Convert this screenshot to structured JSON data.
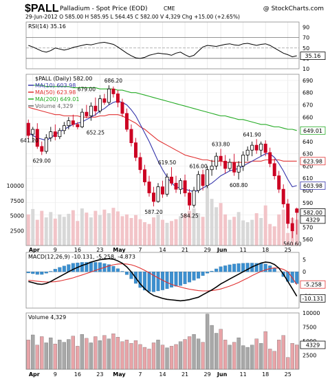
{
  "header": {
    "symbol": "$PALL",
    "name": "Palladium - Spot Price (EOD)",
    "exchange": "CME",
    "watermark": "@ StockCharts.com",
    "quote_line": "29-Jun-2012  O 585.00  H 585.95  L 564.45  C 582.00  V 4,329  Chg +15.00 (+2.65%)"
  },
  "colors": {
    "up": "#000000",
    "down": "#cc0022",
    "ma10": "#3333aa",
    "ma50": "#e03030",
    "ma200": "#22aa22",
    "vol_up": "#a8a8a8",
    "vol_down": "#e8a4a8",
    "macd_line": "#000000",
    "signal_line": "#e03030",
    "hist": "#3b8fd0",
    "rsi_line": "#000000",
    "rsi_fill": "#c8a0a0"
  },
  "x_axis": {
    "labels": [
      "Apr",
      "9",
      "16",
      "23",
      "May",
      "7",
      "14",
      "21",
      "29",
      "Jun",
      "11",
      "18",
      "25"
    ],
    "label_positions": [
      1,
      6,
      11,
      16,
      20,
      25,
      30,
      35,
      40,
      43,
      48,
      53,
      58
    ]
  },
  "chart_data": [
    {
      "type": "line",
      "panel": "rsi",
      "label": "RSI(14) 35.16",
      "ylim": [
        10,
        100
      ],
      "y_ticks": [
        10,
        30,
        50,
        70,
        90
      ],
      "ref_lines": [
        30,
        50,
        70
      ],
      "last_value": "35.16",
      "values": [
        55,
        52,
        48,
        44,
        42,
        45,
        50,
        48,
        46,
        48,
        51,
        53,
        55,
        57,
        56,
        58,
        60,
        61,
        59,
        57,
        52,
        46,
        40,
        35,
        31,
        30,
        32,
        36,
        38,
        40,
        39,
        38,
        36,
        40,
        42,
        37,
        33,
        36,
        44,
        52,
        55,
        54,
        53,
        55,
        57,
        58,
        56,
        55,
        58,
        59,
        57,
        55,
        57,
        58,
        55,
        50,
        45,
        40,
        37,
        33,
        35
      ]
    },
    {
      "type": "candlestick",
      "panel": "price",
      "title": "$PALL (Daily) 582.00",
      "ylim": [
        555,
        695
      ],
      "y_ticks": [
        560,
        570,
        580,
        590,
        600,
        610,
        620,
        630,
        640,
        650,
        660,
        670,
        680,
        690
      ],
      "ohlc": [
        [
          655,
          658,
          642,
          645
        ],
        [
          646,
          652,
          640,
          650
        ],
        [
          650,
          655,
          634,
          636
        ],
        [
          636,
          640,
          629,
          632
        ],
        [
          632,
          646,
          630,
          643
        ],
        [
          643,
          652,
          640,
          648
        ],
        [
          648,
          654,
          641,
          644
        ],
        [
          644,
          651,
          642,
          649
        ],
        [
          649,
          656,
          646,
          653
        ],
        [
          653,
          660,
          650,
          657
        ],
        [
          657,
          662,
          652,
          654
        ],
        [
          654,
          656,
          650,
          652
        ],
        [
          652,
          667,
          651,
          664
        ],
        [
          664,
          670,
          659,
          661
        ],
        [
          661,
          672,
          657,
          669
        ],
        [
          669,
          676,
          661,
          665
        ],
        [
          665,
          678,
          663,
          675
        ],
        [
          675,
          679,
          670,
          672
        ],
        [
          672,
          686,
          670,
          683
        ],
        [
          683,
          685,
          676,
          679
        ],
        [
          679,
          682,
          668,
          672
        ],
        [
          672,
          675,
          660,
          663
        ],
        [
          663,
          667,
          648,
          650
        ],
        [
          650,
          654,
          636,
          639
        ],
        [
          639,
          643,
          624,
          627
        ],
        [
          627,
          631,
          614,
          617
        ],
        [
          617,
          621,
          604,
          607
        ],
        [
          607,
          612,
          595,
          598
        ],
        [
          598,
          603,
          587,
          591
        ],
        [
          591,
          606,
          590,
          603
        ],
        [
          603,
          608,
          594,
          597
        ],
        [
          597,
          614,
          595,
          611
        ],
        [
          611,
          619,
          604,
          606
        ],
        [
          606,
          612,
          598,
          601
        ],
        [
          601,
          610,
          597,
          608
        ],
        [
          608,
          613,
          595,
          598
        ],
        [
          598,
          601,
          584,
          588
        ],
        [
          588,
          603,
          586,
          600
        ],
        [
          600,
          616,
          598,
          613
        ],
        [
          613,
          617,
          600,
          604
        ],
        [
          604,
          620,
          602,
          617
        ],
        [
          617,
          625,
          612,
          620
        ],
        [
          620,
          631,
          617,
          628
        ],
        [
          628,
          634,
          620,
          624
        ],
        [
          624,
          629,
          614,
          618
        ],
        [
          618,
          626,
          616,
          623
        ],
        [
          623,
          630,
          612,
          615
        ],
        [
          615,
          624,
          609,
          620
        ],
        [
          620,
          632,
          616,
          629
        ],
        [
          629,
          636,
          624,
          633
        ],
        [
          633,
          640,
          628,
          637
        ],
        [
          637,
          642,
          630,
          633
        ],
        [
          633,
          640,
          628,
          638
        ],
        [
          638,
          641,
          628,
          631
        ],
        [
          631,
          635,
          619,
          622
        ],
        [
          622,
          626,
          609,
          612
        ],
        [
          612,
          616,
          598,
          601
        ],
        [
          601,
          605,
          586,
          589
        ],
        [
          589,
          593,
          569,
          573
        ],
        [
          573,
          578,
          561,
          567
        ],
        [
          585,
          586,
          564,
          582
        ]
      ],
      "ma10": [
        647,
        645,
        643,
        642,
        641,
        643,
        646,
        648,
        650,
        652,
        654,
        655,
        656,
        658,
        660,
        662,
        665,
        667,
        670,
        672,
        673,
        672,
        670,
        666,
        661,
        654,
        647,
        640,
        632,
        624,
        617,
        611,
        606,
        603,
        602,
        601,
        600,
        599,
        600,
        602,
        604,
        606,
        609,
        612,
        614,
        616,
        617,
        618,
        620,
        622,
        624,
        626,
        628,
        630,
        630,
        627,
        622,
        616,
        609,
        603,
        604
      ],
      "ma50": [
        668,
        667,
        666,
        665,
        664,
        663,
        662,
        662,
        661,
        661,
        661,
        661,
        660,
        660,
        660,
        660,
        661,
        661,
        662,
        662,
        662,
        661,
        659,
        657,
        655,
        652,
        650,
        647,
        644,
        641,
        639,
        637,
        635,
        633,
        631,
        629,
        628,
        627,
        626,
        625,
        625,
        624,
        624,
        624,
        623,
        623,
        623,
        623,
        623,
        623,
        624,
        624,
        624,
        625,
        625,
        625,
        625,
        624,
        624,
        624,
        624
      ],
      "ma200": [
        686,
        686,
        686,
        686,
        685,
        685,
        685,
        685,
        685,
        685,
        684,
        684,
        684,
        684,
        684,
        684,
        683,
        683,
        683,
        683,
        682,
        682,
        681,
        680,
        680,
        679,
        678,
        677,
        676,
        675,
        674,
        673,
        672,
        671,
        670,
        669,
        668,
        667,
        666,
        665,
        664,
        663,
        662,
        661,
        661,
        660,
        659,
        658,
        658,
        657,
        656,
        655,
        654,
        654,
        653,
        652,
        652,
        651,
        650,
        650,
        649
      ],
      "annotations": [
        {
          "i": 3,
          "text": "641.20",
          "at": 641,
          "pos": "left"
        },
        {
          "i": 3,
          "text": "629.00",
          "at": 629,
          "pos": "below"
        },
        {
          "i": 13,
          "text": "679.00",
          "at": 679,
          "pos": "above"
        },
        {
          "i": 19,
          "text": "686.20",
          "at": 686,
          "pos": "above"
        },
        {
          "i": 15,
          "text": "652.25",
          "at": 652,
          "pos": "below"
        },
        {
          "i": 28,
          "text": "587.20",
          "at": 587,
          "pos": "below"
        },
        {
          "i": 31,
          "text": "619.50",
          "at": 619,
          "pos": "above"
        },
        {
          "i": 36,
          "text": "584.25",
          "at": 584,
          "pos": "below"
        },
        {
          "i": 38,
          "text": "616.00",
          "at": 616,
          "pos": "above"
        },
        {
          "i": 43,
          "text": "633.80",
          "at": 634,
          "pos": "above"
        },
        {
          "i": 47,
          "text": "608.80",
          "at": 609,
          "pos": "below"
        },
        {
          "i": 50,
          "text": "641.90",
          "at": 642,
          "pos": "above"
        },
        {
          "i": 59,
          "text": "560.60",
          "at": 561,
          "pos": "below"
        }
      ],
      "legend": [
        "$PALL (Daily) 582.00",
        "MA(10) 603.98",
        "MA(50) 623.98",
        "MA(200) 649.01",
        "Volume 4,329"
      ],
      "price_label": "582.00",
      "ma_tags": [
        "649.01",
        "623.98",
        "603.98"
      ],
      "overlay_vol_ticks": [
        2500,
        5000,
        7500,
        10000
      ]
    },
    {
      "type": "line",
      "panel": "macd",
      "label": "MACD(12,26,9) -10.131, -5.258, -4.873",
      "ylim": [
        -15,
        8
      ],
      "y_ticks": [
        -10,
        -5,
        0,
        5
      ],
      "macd_tag": "-10.131",
      "signal_tag": "-5.258",
      "macd": [
        -4,
        -4.5,
        -5,
        -5.2,
        -4.8,
        -4,
        -3,
        -2,
        -1,
        0,
        1,
        1.8,
        2.6,
        3.2,
        4,
        4.5,
        5,
        5.2,
        5.4,
        5.2,
        4.5,
        3.5,
        2,
        0,
        -2.5,
        -5,
        -7,
        -8.6,
        -9.8,
        -10.4,
        -11,
        -11.4,
        -11.6,
        -11.8,
        -12,
        -11.8,
        -11.5,
        -11,
        -10.5,
        -9.5,
        -8.5,
        -7.5,
        -6.3,
        -5,
        -4,
        -3,
        -2,
        -1,
        0,
        1,
        2,
        2.8,
        3.6,
        4,
        3.8,
        3,
        1.5,
        -1,
        -4,
        -7,
        -10.1
      ],
      "signal": [
        -3.5,
        -3.7,
        -3.9,
        -4.1,
        -4.2,
        -4.2,
        -4.1,
        -3.8,
        -3.4,
        -3,
        -2.5,
        -1.9,
        -1.3,
        -0.7,
        -0.1,
        0.6,
        1.2,
        1.8,
        2.4,
        2.9,
        3.2,
        3.3,
        3.2,
        2.9,
        2.3,
        1.5,
        0.6,
        -0.4,
        -1.5,
        -2.5,
        -3.5,
        -4.4,
        -5.2,
        -5.8,
        -6.3,
        -6.8,
        -7.2,
        -7.5,
        -7.8,
        -7.9,
        -7.9,
        -7.8,
        -7.5,
        -7.1,
        -6.5,
        -5.9,
        -5.2,
        -4.4,
        -3.5,
        -2.6,
        -1.6,
        -0.7,
        0.1,
        0.8,
        1.3,
        1.6,
        1.5,
        1,
        0,
        -2.5,
        -5.3
      ],
      "histogram": [
        -0.5,
        -0.8,
        -1.1,
        -1.1,
        -0.6,
        0.2,
        1.1,
        1.8,
        2.4,
        3,
        3.5,
        3.7,
        3.9,
        3.9,
        4.1,
        3.9,
        3.8,
        3.4,
        3,
        2.3,
        1.3,
        0.2,
        -1.2,
        -2.9,
        -4.8,
        -6.5,
        -7.6,
        -8.2,
        -8.3,
        -7.9,
        -7.5,
        -7,
        -6.4,
        -6,
        -5.7,
        -5,
        -4.3,
        -3.5,
        -2.7,
        -1.6,
        -0.6,
        0.3,
        1.2,
        2.1,
        2.5,
        2.9,
        3.2,
        3.4,
        3.5,
        3.6,
        3.6,
        3.5,
        3.5,
        3.2,
        2.5,
        1.4,
        0,
        -2,
        -4,
        -4.5,
        -4.9
      ]
    },
    {
      "type": "bar",
      "panel": "volume",
      "label": "Volume 4,329",
      "ylim": [
        0,
        10000
      ],
      "y_ticks": [
        2500,
        5000,
        7500,
        10000
      ],
      "last_tag": "4329",
      "values": [
        5200,
        6100,
        4300,
        5800,
        4700,
        5600,
        4500,
        5200,
        4800,
        5300,
        5900,
        4100,
        6200,
        5500,
        4700,
        5800,
        5100,
        6000,
        5400,
        6300,
        5700,
        4900,
        5200,
        4600,
        5100,
        4400,
        3900,
        3600,
        4700,
        5200,
        4300,
        3800,
        4100,
        4400,
        4900,
        5300,
        5800,
        6200,
        5400,
        4800,
        9800,
        7800,
        6400,
        7100,
        5200,
        4300,
        4800,
        5600,
        4200,
        3900,
        4300,
        5400,
        4600,
        6700,
        3600,
        3200,
        5200,
        6000,
        2100,
        4600,
        4329
      ]
    }
  ]
}
